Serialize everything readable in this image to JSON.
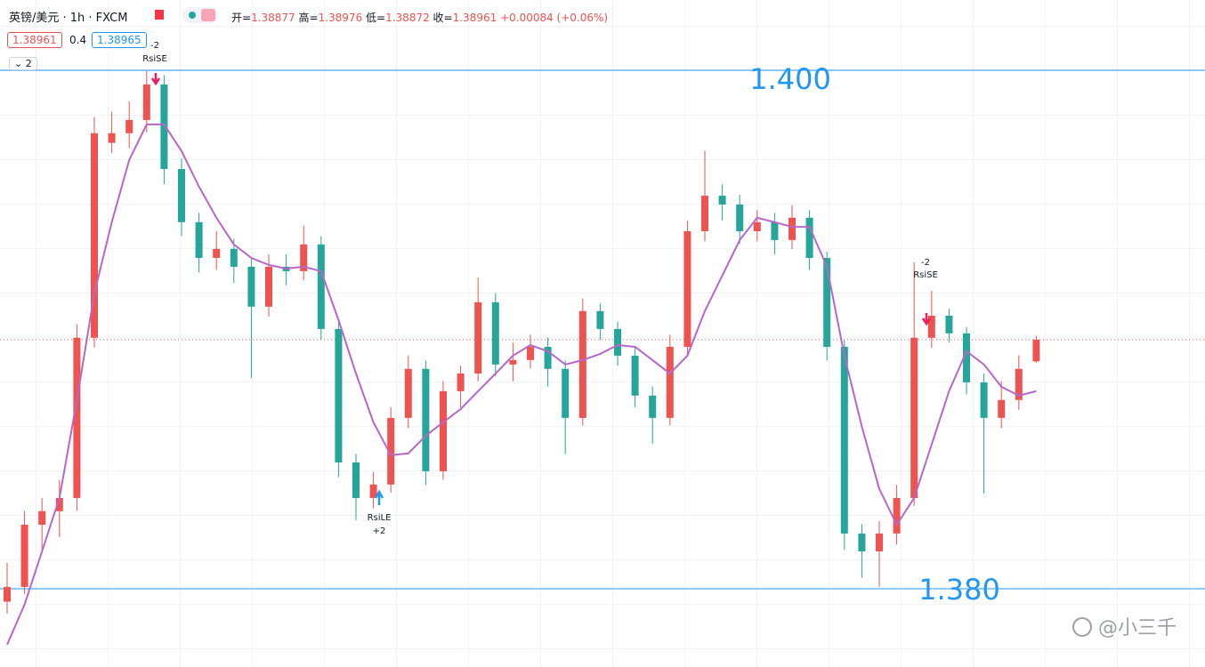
{
  "header": {
    "symbol": "英镑/美元 · 1h · FXCM",
    "open_label": "开=",
    "high_label": "高=",
    "low_label": "低=",
    "close_label": "收=",
    "change": "+0.00084 (+0.06%)",
    "spread": "0.4",
    "ask": "1.38965",
    "collapse": "2"
  },
  "chart_data": {
    "type": "candlestick",
    "ylim": [
      1.37698,
      1.40271
    ],
    "up_color": "#ef5350",
    "down_color": "#26a69a",
    "candles": [
      [
        1.3795,
        1.381,
        1.37904,
        1.38007
      ],
      [
        1.38007,
        1.383,
        1.3798,
        1.38247
      ],
      [
        1.38247,
        1.3835,
        1.3815,
        1.38299
      ],
      [
        1.38299,
        1.3842,
        1.382,
        1.3835
      ],
      [
        1.3835,
        1.3902,
        1.383,
        1.38968
      ],
      [
        1.38968,
        1.3982,
        1.3893,
        1.39757
      ],
      [
        1.3972,
        1.3984,
        1.3968,
        1.39757
      ],
      [
        1.39757,
        1.3988,
        1.397,
        1.39808
      ],
      [
        1.39808,
        1.39997,
        1.3976,
        1.39945
      ],
      [
        1.39945,
        1.3998,
        1.3956,
        1.39619
      ],
      [
        1.39619,
        1.3966,
        1.3936,
        1.39414
      ],
      [
        1.39414,
        1.3945,
        1.3922,
        1.39276
      ],
      [
        1.39276,
        1.3938,
        1.3923,
        1.39311
      ],
      [
        1.39311,
        1.3935,
        1.3918,
        1.39242
      ],
      [
        1.39242,
        1.3928,
        1.38813,
        1.39088
      ],
      [
        1.39088,
        1.3929,
        1.3905,
        1.39242
      ],
      [
        1.39242,
        1.3929,
        1.3917,
        1.39225
      ],
      [
        1.39225,
        1.394,
        1.3919,
        1.39328
      ],
      [
        1.39328,
        1.3936,
        1.3896,
        1.39002
      ],
      [
        1.39002,
        1.3904,
        1.3843,
        1.38487
      ],
      [
        1.38487,
        1.3852,
        1.38265,
        1.3835
      ],
      [
        1.3835,
        1.3845,
        1.3831,
        1.38402
      ],
      [
        1.38402,
        1.387,
        1.3837,
        1.38659
      ],
      [
        1.38659,
        1.389,
        1.3862,
        1.38848
      ],
      [
        1.38848,
        1.3888,
        1.384,
        1.38453
      ],
      [
        1.38453,
        1.388,
        1.3842,
        1.38762
      ],
      [
        1.38762,
        1.3886,
        1.387,
        1.3883
      ],
      [
        1.3883,
        1.392,
        1.388,
        1.39105
      ],
      [
        1.39105,
        1.3914,
        1.3882,
        1.38865
      ],
      [
        1.38865,
        1.3895,
        1.388,
        1.38882
      ],
      [
        1.38882,
        1.3898,
        1.3885,
        1.38933
      ],
      [
        1.38933,
        1.3897,
        1.3878,
        1.38848
      ],
      [
        1.38848,
        1.3888,
        1.3852,
        1.38659
      ],
      [
        1.38659,
        1.3912,
        1.3863,
        1.39071
      ],
      [
        1.39071,
        1.391,
        1.3896,
        1.39002
      ],
      [
        1.39002,
        1.3903,
        1.3886,
        1.38899
      ],
      [
        1.38899,
        1.3893,
        1.387,
        1.38745
      ],
      [
        1.38745,
        1.3878,
        1.3856,
        1.38659
      ],
      [
        1.38659,
        1.3898,
        1.3863,
        1.38933
      ],
      [
        1.38933,
        1.3942,
        1.389,
        1.39379
      ],
      [
        1.39379,
        1.3969,
        1.3934,
        1.39516
      ],
      [
        1.39516,
        1.3956,
        1.3942,
        1.39482
      ],
      [
        1.39482,
        1.3952,
        1.3933,
        1.39379
      ],
      [
        1.39379,
        1.3946,
        1.3934,
        1.39414
      ],
      [
        1.39414,
        1.3945,
        1.3929,
        1.39345
      ],
      [
        1.39345,
        1.3948,
        1.3931,
        1.39431
      ],
      [
        1.39431,
        1.3946,
        1.3923,
        1.39276
      ],
      [
        1.39276,
        1.393,
        1.3888,
        1.38933
      ],
      [
        1.38933,
        1.3896,
        1.3815,
        1.38213
      ],
      [
        1.38213,
        1.3825,
        1.38042,
        1.38144
      ],
      [
        1.38144,
        1.3826,
        1.38007,
        1.38213
      ],
      [
        1.38213,
        1.384,
        1.3817,
        1.3835
      ],
      [
        1.3835,
        1.39259,
        1.3832,
        1.38968
      ],
      [
        1.38968,
        1.3915,
        1.3893,
        1.39053
      ],
      [
        1.39053,
        1.3908,
        1.3895,
        1.38985
      ],
      [
        1.38985,
        1.3901,
        1.3875,
        1.38796
      ],
      [
        1.38796,
        1.3883,
        1.38367,
        1.38659
      ],
      [
        1.38659,
        1.388,
        1.3862,
        1.38728
      ],
      [
        1.38728,
        1.389,
        1.3869,
        1.38848
      ],
      [
        1.38877,
        1.38976,
        1.38872,
        1.38961
      ]
    ],
    "ma": {
      "color": "#b767c9",
      "values": [
        1.37784,
        1.37939,
        1.38144,
        1.3835,
        1.38728,
        1.39139,
        1.39414,
        1.39654,
        1.39791,
        1.39791,
        1.39688,
        1.39551,
        1.39431,
        1.39328,
        1.39276,
        1.39249,
        1.39235,
        1.39242,
        1.39225,
        1.39036,
        1.3883,
        1.38642,
        1.38515,
        1.38522,
        1.3859,
        1.38642,
        1.38693,
        1.38762,
        1.3883,
        1.38899,
        1.3894,
        1.38916,
        1.38865,
        1.38882,
        1.38906,
        1.3894,
        1.38933,
        1.38882,
        1.3883,
        1.38899,
        1.39071,
        1.39208,
        1.39345,
        1.39431,
        1.39414,
        1.39396,
        1.39396,
        1.39242,
        1.38899,
        1.38625,
        1.38385,
        1.38247,
        1.3835,
        1.38556,
        1.38762,
        1.38916,
        1.38865,
        1.38779,
        1.38745,
        1.38762
      ]
    },
    "hlines": [
      {
        "value": 1.4,
        "label": "1.400"
      },
      {
        "value": 1.38,
        "label": "1.380"
      }
    ],
    "hline_color": "#2196f3",
    "signals": [
      {
        "qty": "-2",
        "label": "RsiSE"
      },
      {
        "qty": "+2",
        "label": "RsiLE"
      },
      {
        "qty": "-2",
        "label": "RsiSE"
      }
    ]
  },
  "watermark": "@小三千"
}
